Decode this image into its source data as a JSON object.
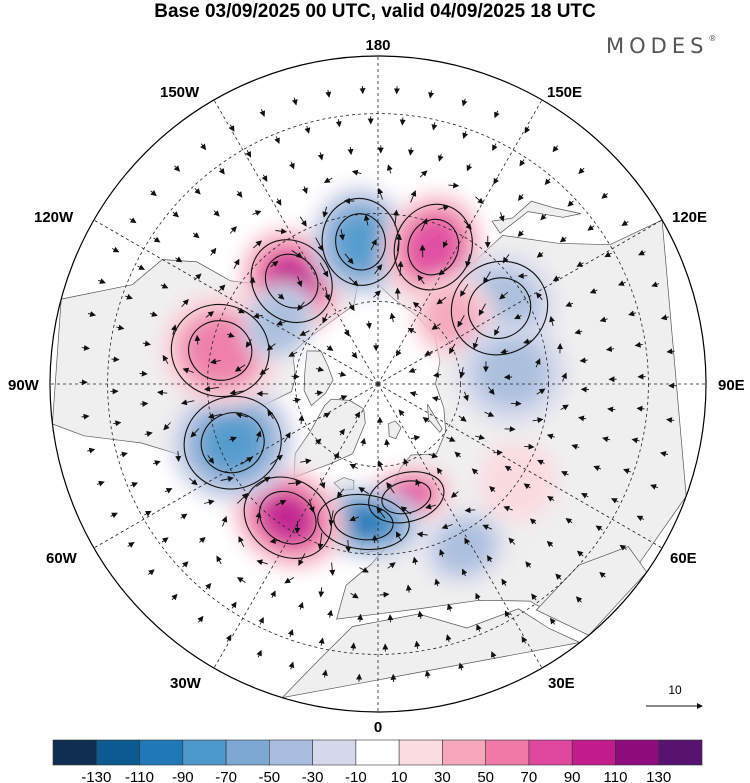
{
  "title": "Base 03/09/2025 00 UTC, valid 04/09/2025 18 UTC",
  "brand": "MODES",
  "brand_mark": "®",
  "longitude_labels": {
    "top": "180",
    "bottom": "0",
    "left": "90W",
    "right": "90E",
    "upper_left_1": "150W",
    "upper_left_2": "120W",
    "lower_left_1": "60W",
    "lower_left_2": "30W",
    "upper_right_1": "150E",
    "upper_right_2": "120E",
    "lower_right_1": "60E",
    "lower_right_2": "30E"
  },
  "vector_reference": {
    "value": "10"
  },
  "colors": {
    "land": "#efefef",
    "coast": "#555555",
    "grid": "#222222",
    "arrow": "#111111"
  },
  "colorbar": {
    "labels": [
      "-130",
      "-110",
      "-90",
      "-70",
      "-50",
      "-30",
      "-10",
      "10",
      "30",
      "50",
      "70",
      "90",
      "110",
      "130"
    ],
    "colors": [
      "#102e52",
      "#0c5a8f",
      "#2178b8",
      "#4d98cc",
      "#7ea8d4",
      "#a9bede",
      "#d6d9ec",
      "#ffffff",
      "#fbdce0",
      "#f5a8bc",
      "#ef7aa8",
      "#e0489f",
      "#c01c8c",
      "#8e0b7d",
      "#56126e"
    ]
  },
  "anomaly_centers": [
    {
      "name": "ne-pacific-high",
      "lon": -140,
      "lat": 58,
      "value": 95,
      "sx": 16,
      "sy": 5
    },
    {
      "name": "gulf-alaska-low",
      "lon": -173,
      "lat": 56,
      "value": -85,
      "sx": 16,
      "sy": 5
    },
    {
      "name": "bering-high",
      "lon": 158,
      "lat": 55,
      "value": 90,
      "sx": 16,
      "sy": 5
    },
    {
      "name": "okhotsk-low",
      "lon": 122,
      "lat": 56,
      "value": -45,
      "sx": 18,
      "sy": 6
    },
    {
      "name": "siberia-high",
      "lon": 132,
      "lat": 66,
      "value": 35,
      "sx": 14,
      "sy": 5
    },
    {
      "name": "central-asia-low",
      "lon": 95,
      "lat": 58,
      "value": -40,
      "sx": 18,
      "sy": 6
    },
    {
      "name": "kazakh-high",
      "lon": 55,
      "lat": 50,
      "value": 30,
      "sx": 14,
      "sy": 5
    },
    {
      "name": "ural-high",
      "lon": 14,
      "lat": 62,
      "value": 75,
      "sx": 9,
      "sy": 5
    },
    {
      "name": "europe-low",
      "lon": 28,
      "lat": 47,
      "value": -35,
      "sx": 12,
      "sy": 5
    },
    {
      "name": "atlantic-low",
      "lon": -6,
      "lat": 57,
      "value": -100,
      "sx": 10,
      "sy": 6
    },
    {
      "name": "atlantic-high",
      "lon": -34,
      "lat": 52,
      "value": 95,
      "sx": 14,
      "sy": 6
    },
    {
      "name": "labrador-low",
      "lon": -68,
      "lat": 53,
      "value": -80,
      "sx": 18,
      "sy": 6
    },
    {
      "name": "canada-high",
      "lon": -102,
      "lat": 52,
      "value": 65,
      "sx": 18,
      "sy": 6
    },
    {
      "name": "canada-low",
      "lon": -122,
      "lat": 62,
      "value": -30,
      "sx": 12,
      "sy": 5
    }
  ]
}
